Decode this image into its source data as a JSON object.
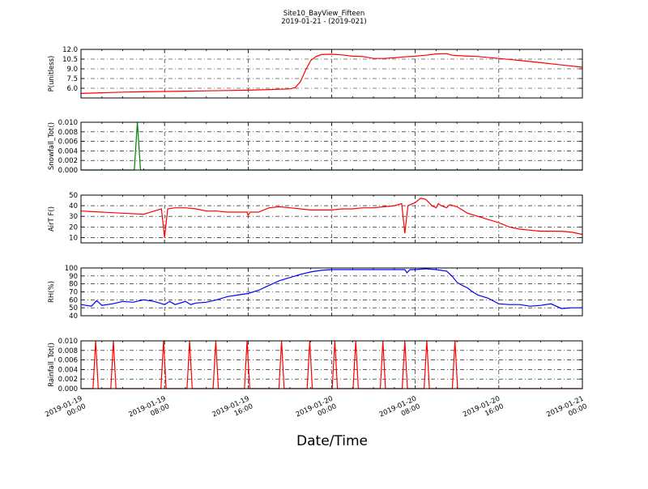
{
  "chart_data": {
    "type": "line",
    "title": "Site10_BayView_Fifteen",
    "subtitle": "2019-01-21 - (2019-021)",
    "xlabel": "Date/Time",
    "x_ticks": [
      [
        "2019-01-19",
        "00:00"
      ],
      [
        "2019-01-19",
        "08:00"
      ],
      [
        "2019-01-19",
        "16:00"
      ],
      [
        "2019-01-20",
        "00:00"
      ],
      [
        "2019-01-20",
        "08:00"
      ],
      [
        "2019-01-20",
        "16:00"
      ],
      [
        "2019-01-21",
        "00:00"
      ]
    ],
    "x_range_hours": [
      0,
      48
    ],
    "grid": true,
    "panels": [
      {
        "ylabel": "P(unitless)",
        "ylim": [
          4.5,
          12.0
        ],
        "yticks": [
          "6.0",
          "7.5",
          "9.0",
          "10.5",
          "12.0"
        ],
        "color": "#ff0000",
        "points": [
          [
            0,
            5.2
          ],
          [
            2,
            5.3
          ],
          [
            4,
            5.4
          ],
          [
            6,
            5.45
          ],
          [
            8,
            5.5
          ],
          [
            10,
            5.55
          ],
          [
            12,
            5.6
          ],
          [
            14,
            5.65
          ],
          [
            16,
            5.7
          ],
          [
            18,
            5.8
          ],
          [
            20,
            5.9
          ],
          [
            20.5,
            6.1
          ],
          [
            21,
            7.0
          ],
          [
            21.5,
            8.8
          ],
          [
            22,
            10.3
          ],
          [
            22.5,
            10.9
          ],
          [
            23,
            11.2
          ],
          [
            24,
            11.25
          ],
          [
            25,
            11.15
          ],
          [
            26,
            10.95
          ],
          [
            27,
            10.9
          ],
          [
            28,
            10.6
          ],
          [
            29,
            10.6
          ],
          [
            30,
            10.7
          ],
          [
            31,
            10.85
          ],
          [
            32,
            10.95
          ],
          [
            33,
            11.1
          ],
          [
            34,
            11.3
          ],
          [
            35,
            11.35
          ],
          [
            35.5,
            11.1
          ],
          [
            36,
            11.05
          ],
          [
            38,
            10.9
          ],
          [
            40,
            10.6
          ],
          [
            42,
            10.3
          ],
          [
            44,
            9.95
          ],
          [
            46,
            9.6
          ],
          [
            48,
            9.25
          ]
        ]
      },
      {
        "ylabel": "Snowfall_Tot()",
        "ylim": [
          0,
          0.01
        ],
        "yticks": [
          "0.000",
          "0.002",
          "0.004",
          "0.006",
          "0.008",
          "0.010"
        ],
        "color": "#008000",
        "points": [
          [
            0,
            0
          ],
          [
            5.1,
            0
          ],
          [
            5.4,
            0.01
          ],
          [
            5.7,
            0
          ],
          [
            48,
            0
          ]
        ]
      },
      {
        "ylabel": "AirT F()",
        "ylim": [
          5,
          50
        ],
        "yticks": [
          "10",
          "20",
          "30",
          "40",
          "50"
        ],
        "color": "#ff0000",
        "points": [
          [
            0,
            35
          ],
          [
            2,
            34
          ],
          [
            4,
            33
          ],
          [
            6,
            32
          ],
          [
            7,
            35
          ],
          [
            7.7,
            37
          ],
          [
            8,
            10
          ],
          [
            8.3,
            37
          ],
          [
            9,
            38
          ],
          [
            10,
            38
          ],
          [
            11,
            37
          ],
          [
            12,
            35
          ],
          [
            13,
            35
          ],
          [
            14,
            34
          ],
          [
            15,
            34
          ],
          [
            15.9,
            34
          ],
          [
            16,
            31
          ],
          [
            16.2,
            34
          ],
          [
            17,
            34
          ],
          [
            18,
            38
          ],
          [
            19,
            39
          ],
          [
            20,
            38
          ],
          [
            21,
            37
          ],
          [
            22,
            36
          ],
          [
            23,
            36
          ],
          [
            24,
            36
          ],
          [
            25,
            37
          ],
          [
            26,
            37
          ],
          [
            27,
            38
          ],
          [
            28,
            38
          ],
          [
            29,
            39
          ],
          [
            30,
            40
          ],
          [
            30.7,
            42
          ],
          [
            31,
            14
          ],
          [
            31.3,
            40
          ],
          [
            32,
            43
          ],
          [
            32.5,
            47
          ],
          [
            33,
            46
          ],
          [
            33.6,
            40
          ],
          [
            34,
            38
          ],
          [
            34.2,
            42
          ],
          [
            34.5,
            40
          ],
          [
            35,
            38
          ],
          [
            35.3,
            41
          ],
          [
            36,
            39
          ],
          [
            37,
            33
          ],
          [
            38,
            30
          ],
          [
            39,
            27
          ],
          [
            40,
            24
          ],
          [
            41,
            20
          ],
          [
            42,
            18
          ],
          [
            43,
            17
          ],
          [
            44,
            16
          ],
          [
            45,
            16
          ],
          [
            46,
            16
          ],
          [
            47,
            15
          ],
          [
            48,
            13
          ]
        ]
      },
      {
        "ylabel": "RH(%)",
        "ylim": [
          40,
          100
        ],
        "yticks": [
          "40",
          "50",
          "60",
          "70",
          "80",
          "90",
          "100"
        ],
        "color": "#0000ff",
        "points": [
          [
            0,
            54
          ],
          [
            1,
            52
          ],
          [
            1.5,
            59
          ],
          [
            2,
            53
          ],
          [
            3,
            55
          ],
          [
            4,
            58
          ],
          [
            5,
            57
          ],
          [
            6,
            60
          ],
          [
            7,
            58
          ],
          [
            8,
            54
          ],
          [
            8.5,
            58
          ],
          [
            9,
            54
          ],
          [
            10,
            58
          ],
          [
            10.5,
            54
          ],
          [
            11,
            56
          ],
          [
            12,
            57
          ],
          [
            13,
            60
          ],
          [
            14,
            64
          ],
          [
            15,
            66
          ],
          [
            16,
            68
          ],
          [
            17,
            72
          ],
          [
            18,
            78
          ],
          [
            19,
            84
          ],
          [
            20,
            88
          ],
          [
            21,
            92
          ],
          [
            22,
            95
          ],
          [
            23,
            97
          ],
          [
            24,
            98
          ],
          [
            25,
            98
          ],
          [
            26,
            98
          ],
          [
            27,
            98
          ],
          [
            28,
            98
          ],
          [
            29,
            98
          ],
          [
            30,
            98
          ],
          [
            31,
            98
          ],
          [
            31.2,
            94
          ],
          [
            31.5,
            98
          ],
          [
            32,
            98
          ],
          [
            33,
            99
          ],
          [
            34,
            98
          ],
          [
            35,
            96
          ],
          [
            35.5,
            90
          ],
          [
            36,
            82
          ],
          [
            36.5,
            78
          ],
          [
            37,
            75
          ],
          [
            37.5,
            70
          ],
          [
            38,
            66
          ],
          [
            39,
            62
          ],
          [
            40,
            55
          ],
          [
            41,
            54
          ],
          [
            42,
            54
          ],
          [
            43,
            52
          ],
          [
            44,
            53
          ],
          [
            45,
            55
          ],
          [
            46,
            49
          ],
          [
            47,
            50
          ],
          [
            48,
            50
          ]
        ]
      },
      {
        "ylabel": "Rainfall_Tot()",
        "ylim": [
          0,
          0.01
        ],
        "yticks": [
          "0.000",
          "0.002",
          "0.004",
          "0.006",
          "0.008",
          "0.010"
        ],
        "color": "#ff0000",
        "spikes": [
          1.4,
          3.1,
          7.9,
          10.4,
          12.9,
          15.9,
          19.2,
          21.9,
          24.3,
          26.3,
          28.9,
          31.0,
          33.1,
          35.8
        ]
      }
    ]
  }
}
